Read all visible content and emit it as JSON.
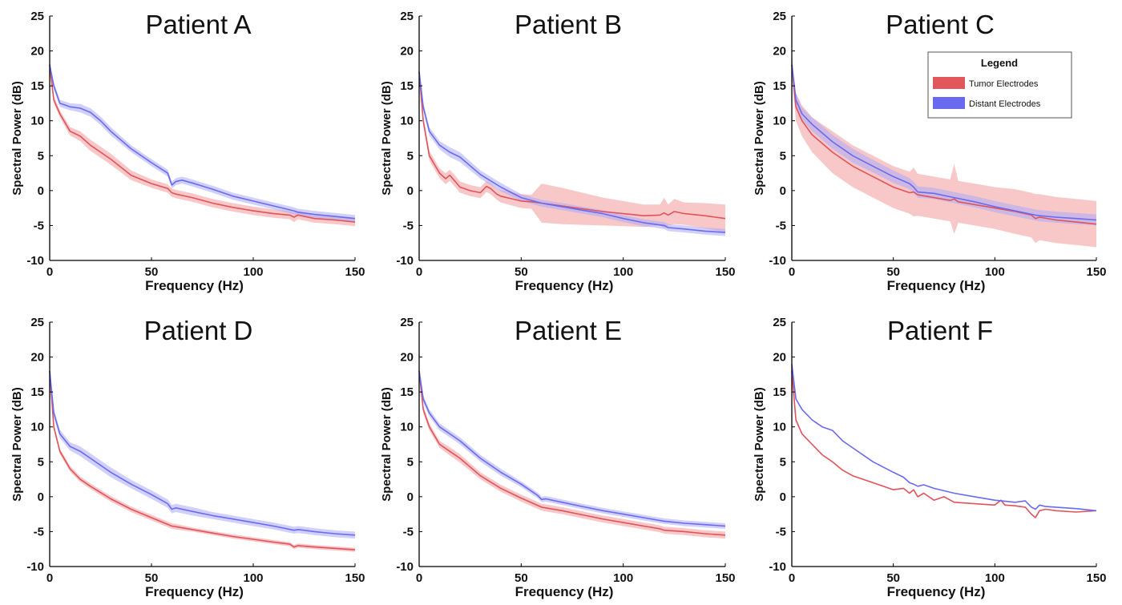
{
  "figure": {
    "legend": {
      "title": "Legend",
      "entries": [
        "Tumor Electrodes",
        "Distant Electrodes"
      ],
      "placement": "top-right of Patient C panel"
    },
    "colors": {
      "tumor_line": "#e0535a",
      "tumor_band": "#f29a9d",
      "distant_line": "#6a6af0",
      "distant_band": "#a9a9f7",
      "axis": "#000000"
    }
  },
  "chart_data": [
    {
      "type": "line",
      "title": "Patient A",
      "xlabel": "Frequency (Hz)",
      "ylabel": "Spectral Power (dB)",
      "xlim": [
        0,
        150
      ],
      "ylim": [
        -10,
        25
      ],
      "xticks": [
        0,
        50,
        100,
        150
      ],
      "yticks": [
        25,
        20,
        15,
        10,
        5,
        0,
        -5,
        -10
      ],
      "grid": false,
      "series": [
        {
          "name": "Tumor Electrodes",
          "x": [
            0,
            2,
            5,
            10,
            15,
            20,
            25,
            30,
            40,
            50,
            58,
            60,
            62,
            70,
            80,
            90,
            100,
            110,
            118,
            120,
            122,
            130,
            140,
            150
          ],
          "y": [
            18,
            13,
            11,
            8.5,
            7.8,
            6.5,
            5.5,
            4.5,
            2.2,
            1,
            0.3,
            -0.3,
            -0.5,
            -1,
            -1.8,
            -2.4,
            -2.9,
            -3.3,
            -3.5,
            -3.8,
            -3.5,
            -4,
            -4.2,
            -4.5
          ],
          "band": [
            0.6,
            0.5,
            0.5,
            0.6,
            0.7,
            0.8,
            0.8,
            0.8,
            0.7,
            0.6,
            0.6,
            0.6,
            0.6,
            0.6,
            0.6,
            0.6,
            0.6,
            0.6,
            0.6,
            0.7,
            0.6,
            0.6,
            0.6,
            0.6
          ]
        },
        {
          "name": "Distant Electrodes",
          "x": [
            0,
            2,
            5,
            10,
            15,
            20,
            25,
            30,
            40,
            50,
            58,
            60,
            62,
            65,
            70,
            80,
            90,
            100,
            110,
            120,
            122,
            130,
            140,
            150
          ],
          "y": [
            18,
            15,
            12.5,
            12,
            11.8,
            11.2,
            10,
            8.5,
            6,
            4,
            2.5,
            0.8,
            1.3,
            1.5,
            1.1,
            0.2,
            -0.8,
            -1.5,
            -2.2,
            -2.9,
            -3.1,
            -3.4,
            -3.7,
            -4
          ],
          "band": [
            0.6,
            0.5,
            0.5,
            0.5,
            0.6,
            0.6,
            0.6,
            0.6,
            0.5,
            0.5,
            0.5,
            0.5,
            0.5,
            0.5,
            0.5,
            0.5,
            0.5,
            0.5,
            0.5,
            0.5,
            0.5,
            0.5,
            0.5,
            0.5
          ]
        }
      ]
    },
    {
      "type": "line",
      "title": "Patient B",
      "xlabel": "Frequency (Hz)",
      "ylabel": "Spectral Power (dB)",
      "xlim": [
        0,
        150
      ],
      "ylim": [
        -10,
        25
      ],
      "xticks": [
        0,
        50,
        100,
        150
      ],
      "yticks": [
        25,
        20,
        15,
        10,
        5,
        0,
        -5,
        -10
      ],
      "grid": false,
      "series": [
        {
          "name": "Tumor Electrodes",
          "x": [
            0,
            2,
            5,
            10,
            13,
            15,
            18,
            20,
            25,
            30,
            33,
            35,
            38,
            40,
            50,
            55,
            60,
            70,
            80,
            90,
            100,
            110,
            118,
            120,
            122,
            125,
            130,
            140,
            150
          ],
          "y": [
            17,
            10,
            5,
            2.5,
            1.7,
            2.2,
            1.2,
            0.5,
            0,
            -0.3,
            0.6,
            0.3,
            -0.5,
            -0.8,
            -1.5,
            -1.6,
            -1.8,
            -2.2,
            -2.6,
            -3,
            -3.3,
            -3.6,
            -3.5,
            -3.2,
            -3.5,
            -3,
            -3.3,
            -3.6,
            -4
          ],
          "band": [
            0.7,
            0.7,
            0.7,
            0.7,
            0.8,
            0.8,
            0.8,
            0.8,
            0.8,
            0.8,
            0.8,
            0.8,
            0.8,
            0.9,
            1,
            1,
            2.8,
            2.6,
            2.3,
            2,
            1.8,
            1.6,
            1.5,
            2.2,
            1.5,
            1.8,
            1.6,
            1.8,
            2
          ]
        },
        {
          "name": "Distant Electrodes",
          "x": [
            0,
            2,
            5,
            10,
            15,
            20,
            30,
            40,
            50,
            55,
            60,
            62,
            70,
            80,
            90,
            100,
            110,
            120,
            122,
            130,
            140,
            150
          ],
          "y": [
            17,
            12,
            8.5,
            6.5,
            5.5,
            4.8,
            2.3,
            0.5,
            -1,
            -1.4,
            -1.8,
            -1.9,
            -2.3,
            -2.8,
            -3.3,
            -4,
            -4.6,
            -5,
            -5.3,
            -5.5,
            -5.8,
            -6
          ],
          "band": [
            0.6,
            0.6,
            0.6,
            0.6,
            0.7,
            0.7,
            0.6,
            0.6,
            0.5,
            0.5,
            0.5,
            0.5,
            0.5,
            0.5,
            0.5,
            0.5,
            0.5,
            0.5,
            0.5,
            0.5,
            0.5,
            0.5
          ]
        }
      ]
    },
    {
      "type": "line",
      "title": "Patient C",
      "xlabel": "Frequency (Hz)",
      "ylabel": "Spectral Power (dB)",
      "xlim": [
        0,
        150
      ],
      "ylim": [
        -10,
        25
      ],
      "xticks": [
        0,
        50,
        100,
        150
      ],
      "yticks": [
        25,
        20,
        15,
        10,
        5,
        0,
        -5,
        -10
      ],
      "grid": false,
      "series": [
        {
          "name": "Tumor Electrodes",
          "x": [
            0,
            2,
            5,
            10,
            20,
            30,
            40,
            50,
            58,
            60,
            62,
            70,
            78,
            80,
            82,
            90,
            100,
            110,
            118,
            120,
            122,
            130,
            140,
            150
          ],
          "y": [
            18,
            12,
            10,
            8,
            5.5,
            3.5,
            2,
            0.5,
            -0.3,
            -0.2,
            -0.6,
            -1,
            -1.4,
            -1.2,
            -1.6,
            -2,
            -2.5,
            -3,
            -3.5,
            -4,
            -3.8,
            -4.2,
            -4.5,
            -4.8
          ],
          "band": [
            1.5,
            2,
            2.2,
            2.5,
            3,
            3,
            3,
            3,
            3,
            3.5,
            3,
            3,
            3,
            5,
            3,
            3,
            3,
            3.2,
            3.2,
            3.5,
            3.3,
            3.3,
            3.3,
            3.3
          ]
        },
        {
          "name": "Distant Electrodes",
          "x": [
            0,
            2,
            5,
            10,
            20,
            30,
            40,
            50,
            58,
            60,
            62,
            70,
            80,
            90,
            100,
            110,
            120,
            122,
            130,
            140,
            150
          ],
          "y": [
            18,
            13,
            11,
            9.5,
            7,
            5,
            3.5,
            2,
            1,
            0.5,
            -0.2,
            -0.4,
            -1,
            -1.6,
            -2.3,
            -2.9,
            -3.5,
            -3.6,
            -3.8,
            -4,
            -4.2
          ],
          "band": [
            0.8,
            0.9,
            0.9,
            1,
            1,
            1,
            0.9,
            0.9,
            0.8,
            0.8,
            0.8,
            0.8,
            0.8,
            0.8,
            0.8,
            0.8,
            0.8,
            0.8,
            0.8,
            0.8,
            0.8
          ]
        }
      ]
    },
    {
      "type": "line",
      "title": "Patient D",
      "xlabel": "Frequency (Hz)",
      "ylabel": "Spectral Power (dB)",
      "xlim": [
        0,
        150
      ],
      "ylim": [
        -10,
        25
      ],
      "xticks": [
        0,
        50,
        100,
        150
      ],
      "yticks": [
        25,
        20,
        15,
        10,
        5,
        0,
        -5,
        -10
      ],
      "grid": false,
      "series": [
        {
          "name": "Tumor Electrodes",
          "x": [
            0,
            2,
            5,
            10,
            15,
            20,
            30,
            40,
            50,
            60,
            62,
            70,
            80,
            90,
            100,
            110,
            118,
            120,
            122,
            130,
            140,
            150
          ],
          "y": [
            18,
            10,
            6.5,
            4,
            2.5,
            1.5,
            -0.3,
            -1.8,
            -3,
            -4.2,
            -4.3,
            -4.7,
            -5.2,
            -5.7,
            -6.1,
            -6.5,
            -6.8,
            -7.2,
            -7,
            -7.2,
            -7.4,
            -7.6
          ],
          "band": [
            0.5,
            0.4,
            0.4,
            0.4,
            0.4,
            0.4,
            0.4,
            0.4,
            0.4,
            0.4,
            0.4,
            0.3,
            0.3,
            0.3,
            0.3,
            0.3,
            0.3,
            0.3,
            0.3,
            0.3,
            0.3,
            0.3
          ]
        },
        {
          "name": "Distant Electrodes",
          "x": [
            0,
            2,
            5,
            10,
            15,
            20,
            30,
            40,
            50,
            58,
            60,
            62,
            70,
            80,
            90,
            100,
            110,
            120,
            122,
            130,
            140,
            150
          ],
          "y": [
            18,
            12,
            9,
            7.2,
            6.5,
            5.5,
            3.5,
            1.8,
            0.3,
            -1,
            -1.8,
            -1.6,
            -2.1,
            -2.7,
            -3.2,
            -3.7,
            -4.2,
            -4.8,
            -4.7,
            -5,
            -5.3,
            -5.5
          ],
          "band": [
            0.6,
            0.6,
            0.6,
            0.6,
            0.7,
            0.7,
            0.7,
            0.6,
            0.6,
            0.6,
            0.6,
            0.6,
            0.6,
            0.5,
            0.5,
            0.5,
            0.5,
            0.5,
            0.5,
            0.5,
            0.5,
            0.5
          ]
        }
      ]
    },
    {
      "type": "line",
      "title": "Patient E",
      "xlabel": "Frequency (Hz)",
      "ylabel": "Spectral Power (dB)",
      "xlim": [
        0,
        150
      ],
      "ylim": [
        -10,
        25
      ],
      "xticks": [
        0,
        50,
        100,
        150
      ],
      "yticks": [
        25,
        20,
        15,
        10,
        5,
        0,
        -5,
        -10
      ],
      "grid": false,
      "series": [
        {
          "name": "Tumor Electrodes",
          "x": [
            0,
            2,
            5,
            10,
            15,
            20,
            30,
            40,
            50,
            60,
            62,
            70,
            80,
            90,
            100,
            110,
            118,
            120,
            130,
            140,
            150
          ],
          "y": [
            18,
            12.5,
            10,
            7.5,
            6.5,
            5.5,
            3,
            1.2,
            -0.2,
            -1.5,
            -1.6,
            -2,
            -2.6,
            -3.2,
            -3.7,
            -4.2,
            -4.6,
            -4.8,
            -5,
            -5.3,
            -5.5
          ],
          "band": [
            0.6,
            0.5,
            0.5,
            0.5,
            0.6,
            0.6,
            0.5,
            0.5,
            0.5,
            0.5,
            0.5,
            0.5,
            0.5,
            0.5,
            0.5,
            0.5,
            0.5,
            0.5,
            0.5,
            0.5,
            0.5
          ]
        },
        {
          "name": "Distant Electrodes",
          "x": [
            0,
            2,
            5,
            10,
            15,
            20,
            30,
            40,
            50,
            58,
            60,
            62,
            70,
            80,
            90,
            100,
            110,
            120,
            130,
            140,
            150
          ],
          "y": [
            18,
            14,
            12,
            10,
            9,
            8,
            5.5,
            3.5,
            1.8,
            0.2,
            -0.4,
            -0.3,
            -0.8,
            -1.4,
            -2,
            -2.5,
            -3,
            -3.5,
            -3.8,
            -4,
            -4.2
          ],
          "band": [
            0.5,
            0.5,
            0.5,
            0.5,
            0.5,
            0.5,
            0.5,
            0.5,
            0.4,
            0.4,
            0.4,
            0.4,
            0.4,
            0.4,
            0.4,
            0.4,
            0.4,
            0.4,
            0.4,
            0.4,
            0.4
          ]
        }
      ]
    },
    {
      "type": "line",
      "title": "Patient F",
      "xlabel": "Frequency (Hz)",
      "ylabel": "Spectral Power (dB)",
      "xlim": [
        0,
        150
      ],
      "ylim": [
        -10,
        25
      ],
      "xticks": [
        0,
        50,
        100,
        150
      ],
      "yticks": [
        25,
        20,
        15,
        10,
        5,
        0,
        -5,
        -10
      ],
      "grid": false,
      "series": [
        {
          "name": "Tumor Electrodes",
          "x": [
            0,
            2,
            5,
            10,
            15,
            20,
            25,
            30,
            40,
            50,
            55,
            58,
            60,
            62,
            65,
            70,
            75,
            80,
            90,
            100,
            103,
            105,
            110,
            115,
            118,
            120,
            122,
            125,
            130,
            140,
            150
          ],
          "y": [
            18,
            11,
            9,
            7.5,
            6,
            5,
            3.8,
            3,
            2,
            1,
            1.2,
            0.5,
            1,
            0,
            0.5,
            -0.5,
            0,
            -0.8,
            -1,
            -1.2,
            -0.5,
            -1.2,
            -1.3,
            -1.5,
            -2.5,
            -3,
            -2,
            -1.8,
            -2,
            -2.2,
            -2
          ]
        },
        {
          "name": "Distant Electrodes",
          "x": [
            0,
            2,
            5,
            10,
            15,
            20,
            25,
            30,
            40,
            50,
            55,
            58,
            60,
            62,
            65,
            70,
            80,
            90,
            100,
            110,
            115,
            118,
            120,
            122,
            125,
            130,
            140,
            150
          ],
          "y": [
            19,
            14,
            12.5,
            11,
            10,
            9.5,
            8,
            7,
            5,
            3.5,
            2.8,
            2,
            1.8,
            1.5,
            1.7,
            1.2,
            0.5,
            0,
            -0.5,
            -0.8,
            -0.6,
            -1.5,
            -1.8,
            -1.2,
            -1.4,
            -1.5,
            -1.7,
            -2
          ]
        }
      ]
    }
  ]
}
